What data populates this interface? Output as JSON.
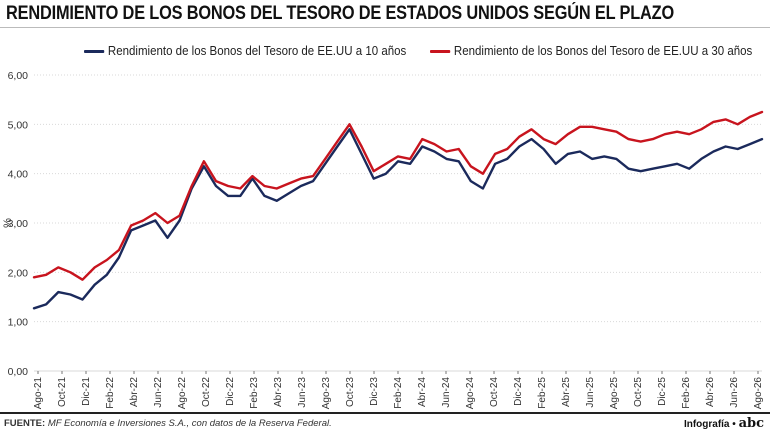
{
  "title": "RENDIMIENTO DE LOS BONOS DEL TESORO DE ESTADOS UNIDOS SEGÚN EL PLAZO",
  "footer": {
    "label": "FUENTE:",
    "text": "MF Economía e Inversiones S.A., con datos de la Reserva Federal.",
    "credit_prefix": "Infografía •",
    "credit_brand": "abc"
  },
  "colors": {
    "series_10y": "#1b2a5c",
    "series_30y": "#c8141e",
    "grid": "#d9d9d9",
    "axis_text": "#333333"
  },
  "chart_data": {
    "type": "line",
    "title": "RENDIMIENTO DE LOS BONOS DEL TESORO DE ESTADOS UNIDOS SEGÚN EL PLAZO",
    "xlabel": "",
    "ylabel": "%",
    "ylim": [
      0,
      6
    ],
    "yticks": [
      "0,00",
      "1,00",
      "2,00",
      "3,00",
      "4,00",
      "5,00",
      "6,00"
    ],
    "grid": true,
    "legend": "top",
    "x_tick_labels": [
      "Ago-21",
      "Oct-21",
      "Dic-21",
      "Feb-22",
      "Abr-22",
      "Jun-22",
      "Ago-22",
      "Oct-22",
      "Dic-22",
      "Feb-23",
      "Abr-23",
      "Jun-23",
      "Ago-23",
      "Oct-23",
      "Dic-23",
      "Feb-24",
      "Abr-24",
      "Jun-24",
      "Ago-24",
      "Oct-24",
      "Dic-24",
      "Feb-25",
      "Abr-25",
      "Jun-25",
      "Ago-25",
      "Oct-25",
      "Dic-25",
      "Feb-26",
      "Abr-26",
      "Jun-26",
      "Ago-26"
    ],
    "x": [
      "Ago-21",
      "Sep-21",
      "Oct-21",
      "Nov-21",
      "Dic-21",
      "Ene-22",
      "Feb-22",
      "Mar-22",
      "Abr-22",
      "May-22",
      "Jun-22",
      "Jul-22",
      "Ago-22",
      "Sep-22",
      "Oct-22",
      "Nov-22",
      "Dic-22",
      "Ene-23",
      "Feb-23",
      "Mar-23",
      "Abr-23",
      "May-23",
      "Jun-23",
      "Jul-23",
      "Ago-23",
      "Sep-23",
      "Oct-23",
      "Nov-23",
      "Dic-23",
      "Ene-24",
      "Feb-24",
      "Mar-24",
      "Abr-24",
      "May-24",
      "Jun-24",
      "Jul-24",
      "Ago-24",
      "Sep-24",
      "Oct-24",
      "Nov-24",
      "Dic-24",
      "Ene-25",
      "Feb-25",
      "Mar-25",
      "Abr-25",
      "May-25",
      "Jun-25",
      "Jul-25",
      "Ago-25",
      "Sep-25",
      "Oct-25",
      "Nov-25",
      "Dic-25",
      "Ene-26",
      "Feb-26",
      "Mar-26",
      "Abr-26",
      "May-26",
      "Jun-26",
      "Jul-26",
      "Ago-26"
    ],
    "series": [
      {
        "name": "Rendimiento de los Bonos del Tesoro de EE.UU a 10 años",
        "color": "#1b2a5c",
        "values": [
          1.27,
          1.35,
          1.6,
          1.55,
          1.45,
          1.75,
          1.95,
          2.3,
          2.85,
          2.95,
          3.05,
          2.7,
          3.05,
          3.7,
          4.15,
          3.75,
          3.55,
          3.55,
          3.9,
          3.55,
          3.45,
          3.6,
          3.75,
          3.85,
          4.2,
          4.55,
          4.9,
          4.4,
          3.9,
          4.0,
          4.25,
          4.2,
          4.55,
          4.45,
          4.3,
          4.25,
          3.85,
          3.7,
          4.2,
          4.3,
          4.55,
          4.7,
          4.5,
          4.2,
          4.4,
          4.45,
          4.3,
          4.35,
          4.3,
          4.1,
          4.05,
          4.1,
          4.15,
          4.2,
          4.1,
          4.3,
          4.45,
          4.55,
          4.5,
          4.6,
          4.7
        ]
      },
      {
        "name": "Rendimiento de los Bonos del Tesoro de EE.UU a 30 años",
        "color": "#c8141e",
        "values": [
          1.9,
          1.95,
          2.1,
          2.0,
          1.85,
          2.1,
          2.25,
          2.45,
          2.95,
          3.05,
          3.2,
          3.0,
          3.15,
          3.75,
          4.25,
          3.85,
          3.75,
          3.7,
          3.95,
          3.75,
          3.7,
          3.8,
          3.9,
          3.95,
          4.3,
          4.65,
          5.0,
          4.55,
          4.05,
          4.2,
          4.35,
          4.3,
          4.7,
          4.6,
          4.45,
          4.5,
          4.15,
          4.0,
          4.4,
          4.5,
          4.75,
          4.9,
          4.7,
          4.6,
          4.8,
          4.95,
          4.95,
          4.9,
          4.85,
          4.7,
          4.65,
          4.7,
          4.8,
          4.85,
          4.8,
          4.9,
          5.05,
          5.1,
          5.0,
          5.15,
          5.25
        ]
      }
    ]
  }
}
